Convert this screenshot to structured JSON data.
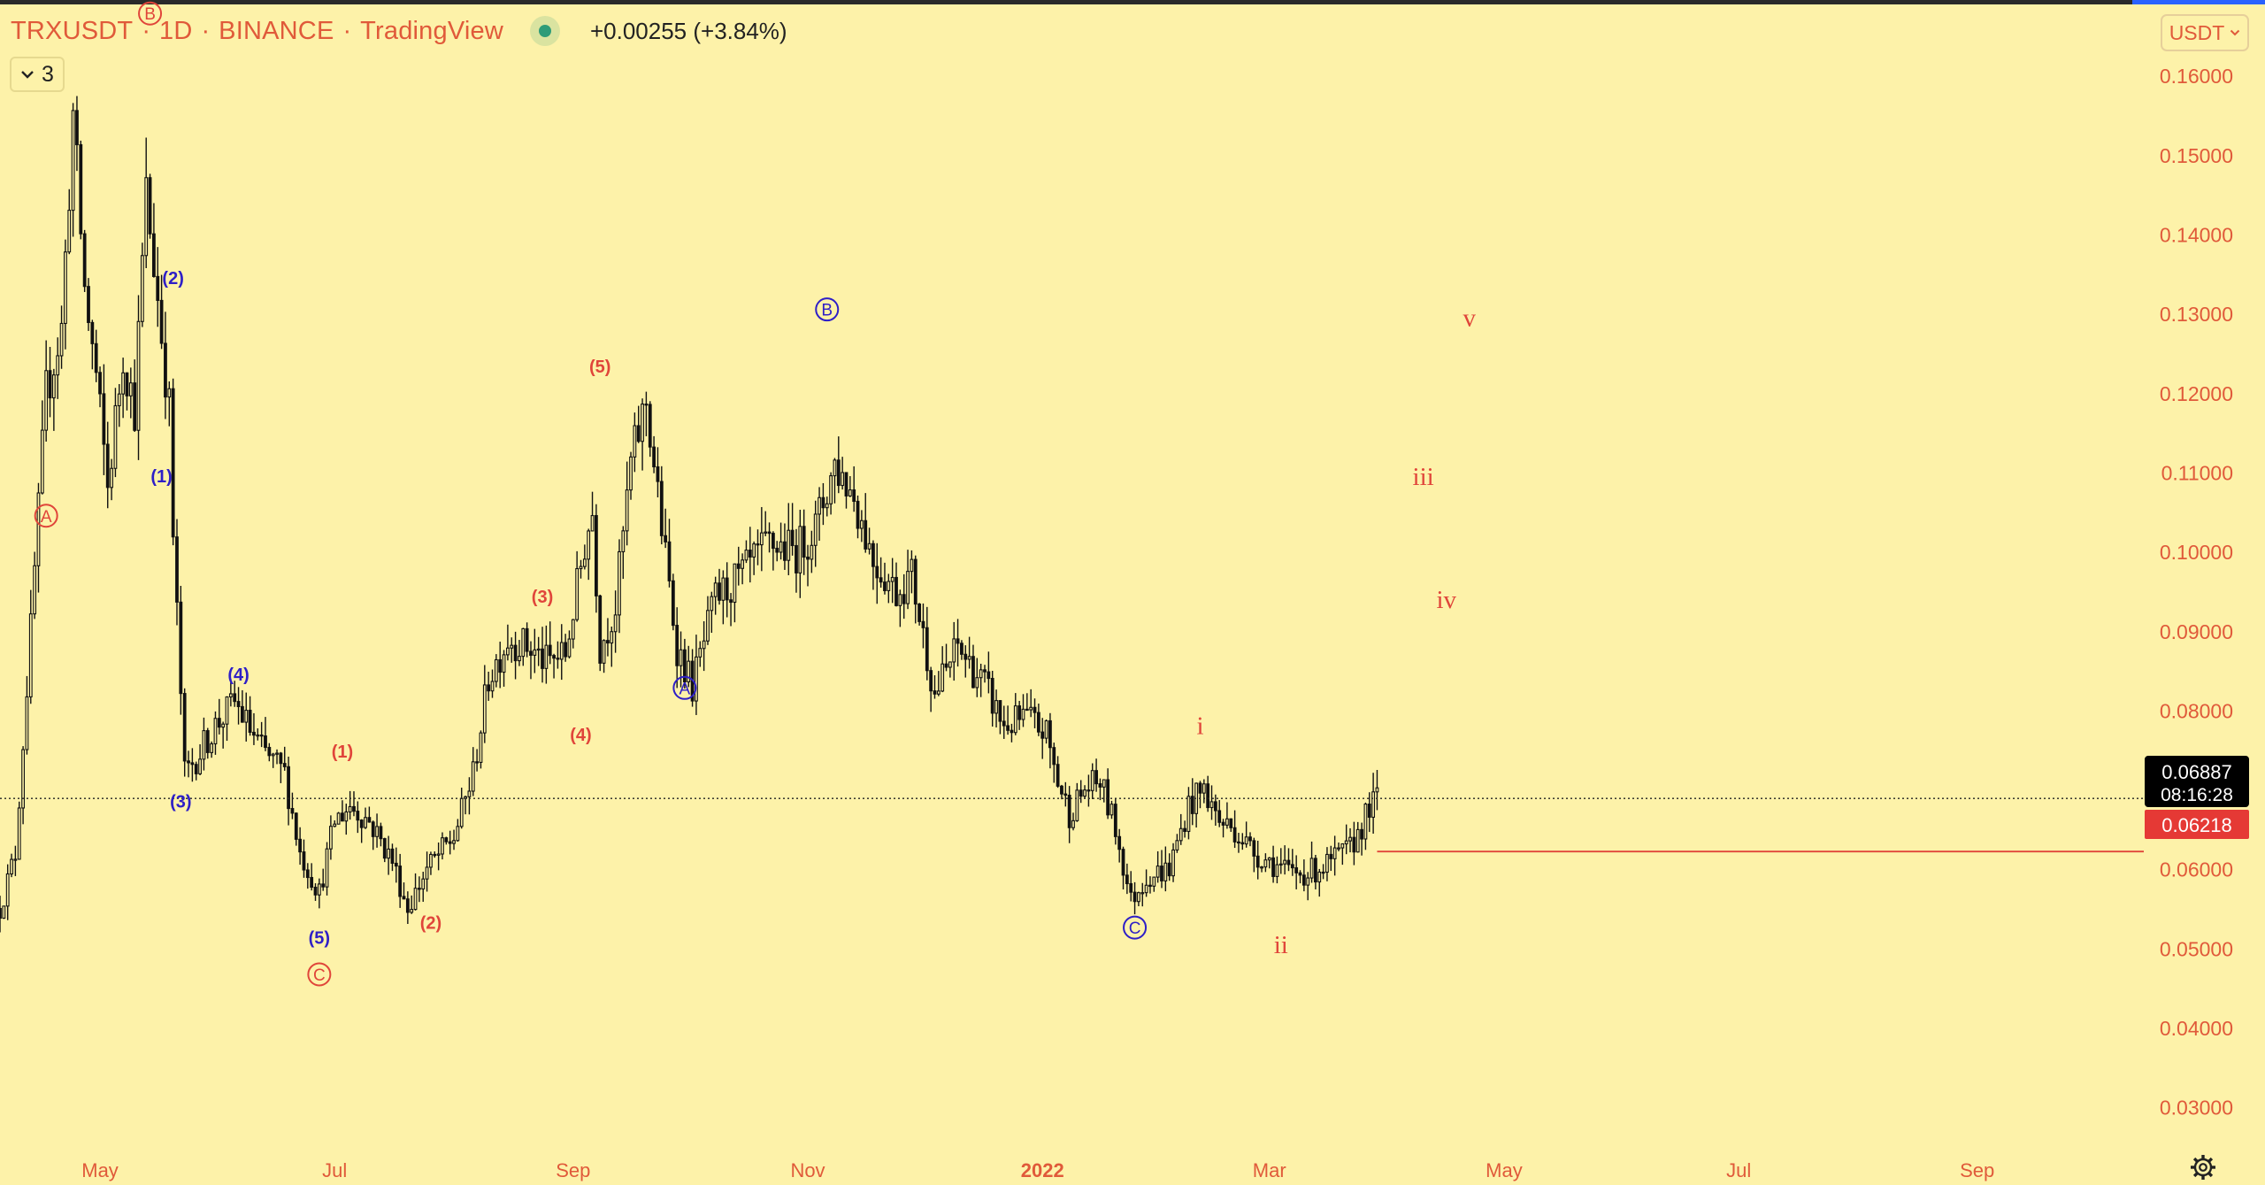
{
  "header": {
    "symbol": "TRXUSDT",
    "interval": "1D",
    "exchange": "BINANCE",
    "platform": "TradingView",
    "change": "+0.00255 (+3.84%)",
    "status_color": "#2e9b78"
  },
  "controls": {
    "collapse_count": "3",
    "currency": "USDT",
    "chevron_icon": "chevron-down-icon",
    "settings_icon": "gear-icon"
  },
  "price_labels": {
    "last_price": "0.06887",
    "countdown": "08:16:28",
    "level_price": "0.06218"
  },
  "colors": {
    "background": "#fdf2a9",
    "candle": "#111111",
    "red_label": "#e0453a",
    "blue_label": "#2e1fc7",
    "level_line": "#e0453a",
    "last_price_bg": "#000000",
    "level_bg": "#e53935"
  },
  "chart_data": {
    "type": "candlestick",
    "yaxis": {
      "ticks": [
        "0.16000",
        "0.15000",
        "0.14000",
        "0.13000",
        "0.12000",
        "0.11000",
        "0.10000",
        "0.09000",
        "0.08000",
        "0.07000",
        "0.06000",
        "0.05000",
        "0.04000",
        "0.03000"
      ],
      "range": [
        0.0245,
        0.1695
      ]
    },
    "xaxis": {
      "ticks": [
        "May",
        "Jul",
        "Sep",
        "Nov",
        "2022",
        "Mar",
        "May",
        "Jul",
        "Sep"
      ],
      "range": [
        "2021-04-05",
        "2022-10-15"
      ]
    },
    "series_close": [
      [
        "2021-04-05",
        0.055
      ],
      [
        "2021-04-09",
        0.062
      ],
      [
        "2021-04-13",
        0.09
      ],
      [
        "2021-04-17",
        0.12
      ],
      [
        "2021-04-21",
        0.128
      ],
      [
        "2021-04-24",
        0.155
      ],
      [
        "2021-04-27",
        0.133
      ],
      [
        "2021-04-30",
        0.122
      ],
      [
        "2021-05-03",
        0.108
      ],
      [
        "2021-05-07",
        0.125
      ],
      [
        "2021-05-10",
        0.118
      ],
      [
        "2021-05-13",
        0.145
      ],
      [
        "2021-05-16",
        0.132
      ],
      [
        "2021-05-19",
        0.118
      ],
      [
        "2021-05-20",
        0.102
      ],
      [
        "2021-05-23",
        0.072
      ],
      [
        "2021-05-26",
        0.074
      ],
      [
        "2021-05-31",
        0.078
      ],
      [
        "2021-06-05",
        0.081
      ],
      [
        "2021-06-12",
        0.075
      ],
      [
        "2021-06-18",
        0.072
      ],
      [
        "2021-06-22",
        0.062
      ],
      [
        "2021-06-27",
        0.057
      ],
      [
        "2021-07-01",
        0.066
      ],
      [
        "2021-07-05",
        0.068
      ],
      [
        "2021-07-10",
        0.066
      ],
      [
        "2021-07-16",
        0.061
      ],
      [
        "2021-07-20",
        0.055
      ],
      [
        "2021-07-25",
        0.06
      ],
      [
        "2021-08-01",
        0.064
      ],
      [
        "2021-08-06",
        0.072
      ],
      [
        "2021-08-10",
        0.084
      ],
      [
        "2021-08-15",
        0.089
      ],
      [
        "2021-08-20",
        0.088
      ],
      [
        "2021-08-25",
        0.086
      ],
      [
        "2021-08-30",
        0.087
      ],
      [
        "2021-09-04",
        0.101
      ],
      [
        "2021-09-06",
        0.105
      ],
      [
        "2021-09-08",
        0.088
      ],
      [
        "2021-09-12",
        0.093
      ],
      [
        "2021-09-16",
        0.111
      ],
      [
        "2021-09-20",
        0.119
      ],
      [
        "2021-09-24",
        0.103
      ],
      [
        "2021-09-28",
        0.088
      ],
      [
        "2021-10-02",
        0.083
      ],
      [
        "2021-10-08",
        0.094
      ],
      [
        "2021-10-15",
        0.097
      ],
      [
        "2021-10-22",
        0.101
      ],
      [
        "2021-10-29",
        0.1
      ],
      [
        "2021-11-03",
        0.103
      ],
      [
        "2021-11-08",
        0.111
      ],
      [
        "2021-11-13",
        0.107
      ],
      [
        "2021-11-18",
        0.099
      ],
      [
        "2021-11-24",
        0.095
      ],
      [
        "2021-11-28",
        0.097
      ],
      [
        "2021-12-04",
        0.082
      ],
      [
        "2021-12-10",
        0.088
      ],
      [
        "2021-12-17",
        0.083
      ],
      [
        "2021-12-22",
        0.078
      ],
      [
        "2021-12-28",
        0.079
      ],
      [
        "2022-01-02",
        0.077
      ],
      [
        "2022-01-05",
        0.071
      ],
      [
        "2022-01-08",
        0.067
      ],
      [
        "2022-01-12",
        0.07
      ],
      [
        "2022-01-16",
        0.071
      ],
      [
        "2022-01-20",
        0.065
      ],
      [
        "2022-01-24",
        0.056
      ],
      [
        "2022-01-28",
        0.059
      ],
      [
        "2022-02-03",
        0.06
      ],
      [
        "2022-02-08",
        0.068
      ],
      [
        "2022-02-12",
        0.07
      ],
      [
        "2022-02-16",
        0.066
      ],
      [
        "2022-02-20",
        0.065
      ],
      [
        "2022-02-25",
        0.062
      ],
      [
        "2022-03-01",
        0.061
      ],
      [
        "2022-03-06",
        0.0595
      ],
      [
        "2022-03-11",
        0.0595
      ],
      [
        "2022-03-16",
        0.0605
      ],
      [
        "2022-03-22",
        0.0625
      ],
      [
        "2022-03-27",
        0.0675
      ],
      [
        "2022-03-29",
        0.06887
      ]
    ],
    "annotations": [
      {
        "text": "A",
        "circled": true,
        "color": "red",
        "date": "2021-04-17",
        "price": 0.1045
      },
      {
        "text": "B",
        "circled": true,
        "color": "red",
        "date": "2021-05-14",
        "price": 0.1678
      },
      {
        "text": "(1)",
        "circled": false,
        "color": "blue",
        "date": "2021-05-17",
        "price": 0.1095
      },
      {
        "text": "(2)",
        "circled": false,
        "color": "blue",
        "date": "2021-05-20",
        "price": 0.1345
      },
      {
        "text": "(3)",
        "circled": false,
        "color": "blue",
        "date": "2021-05-22",
        "price": 0.0685
      },
      {
        "text": "(4)",
        "circled": false,
        "color": "blue",
        "date": "2021-06-06",
        "price": 0.0845
      },
      {
        "text": "(5)",
        "circled": false,
        "color": "blue",
        "date": "2021-06-27",
        "price": 0.0513
      },
      {
        "text": "C",
        "circled": true,
        "color": "red",
        "date": "2021-06-27",
        "price": 0.0467
      },
      {
        "text": "(1)",
        "circled": false,
        "color": "red",
        "date": "2021-07-03",
        "price": 0.0748
      },
      {
        "text": "(2)",
        "circled": false,
        "color": "red",
        "date": "2021-07-26",
        "price": 0.0532
      },
      {
        "text": "(3)",
        "circled": false,
        "color": "red",
        "date": "2021-08-24",
        "price": 0.0943
      },
      {
        "text": "(4)",
        "circled": false,
        "color": "red",
        "date": "2021-09-03",
        "price": 0.0769
      },
      {
        "text": "(5)",
        "circled": false,
        "color": "red",
        "date": "2021-09-08",
        "price": 0.1233
      },
      {
        "text": "A",
        "circled": true,
        "color": "blue",
        "date": "2021-09-30",
        "price": 0.0828
      },
      {
        "text": "B",
        "circled": true,
        "color": "blue",
        "date": "2021-11-06",
        "price": 0.1305
      },
      {
        "text": "C",
        "circled": true,
        "color": "blue",
        "date": "2022-01-25",
        "price": 0.0526
      },
      {
        "text": "i",
        "circled": false,
        "color": "red",
        "date": "2022-02-11",
        "price": 0.0781
      },
      {
        "text": "ii",
        "circled": false,
        "color": "red",
        "date": "2022-03-04",
        "price": 0.0505
      },
      {
        "text": "iii",
        "circled": false,
        "color": "red",
        "date": "2022-04-10",
        "price": 0.1095
      },
      {
        "text": "iv",
        "circled": false,
        "color": "red",
        "date": "2022-04-16",
        "price": 0.094
      },
      {
        "text": "v",
        "circled": false,
        "color": "red",
        "date": "2022-04-22",
        "price": 0.1295
      }
    ],
    "last_price_line": 0.06887,
    "horizontal_level": {
      "price": 0.06218,
      "from": "2022-03-29"
    }
  }
}
